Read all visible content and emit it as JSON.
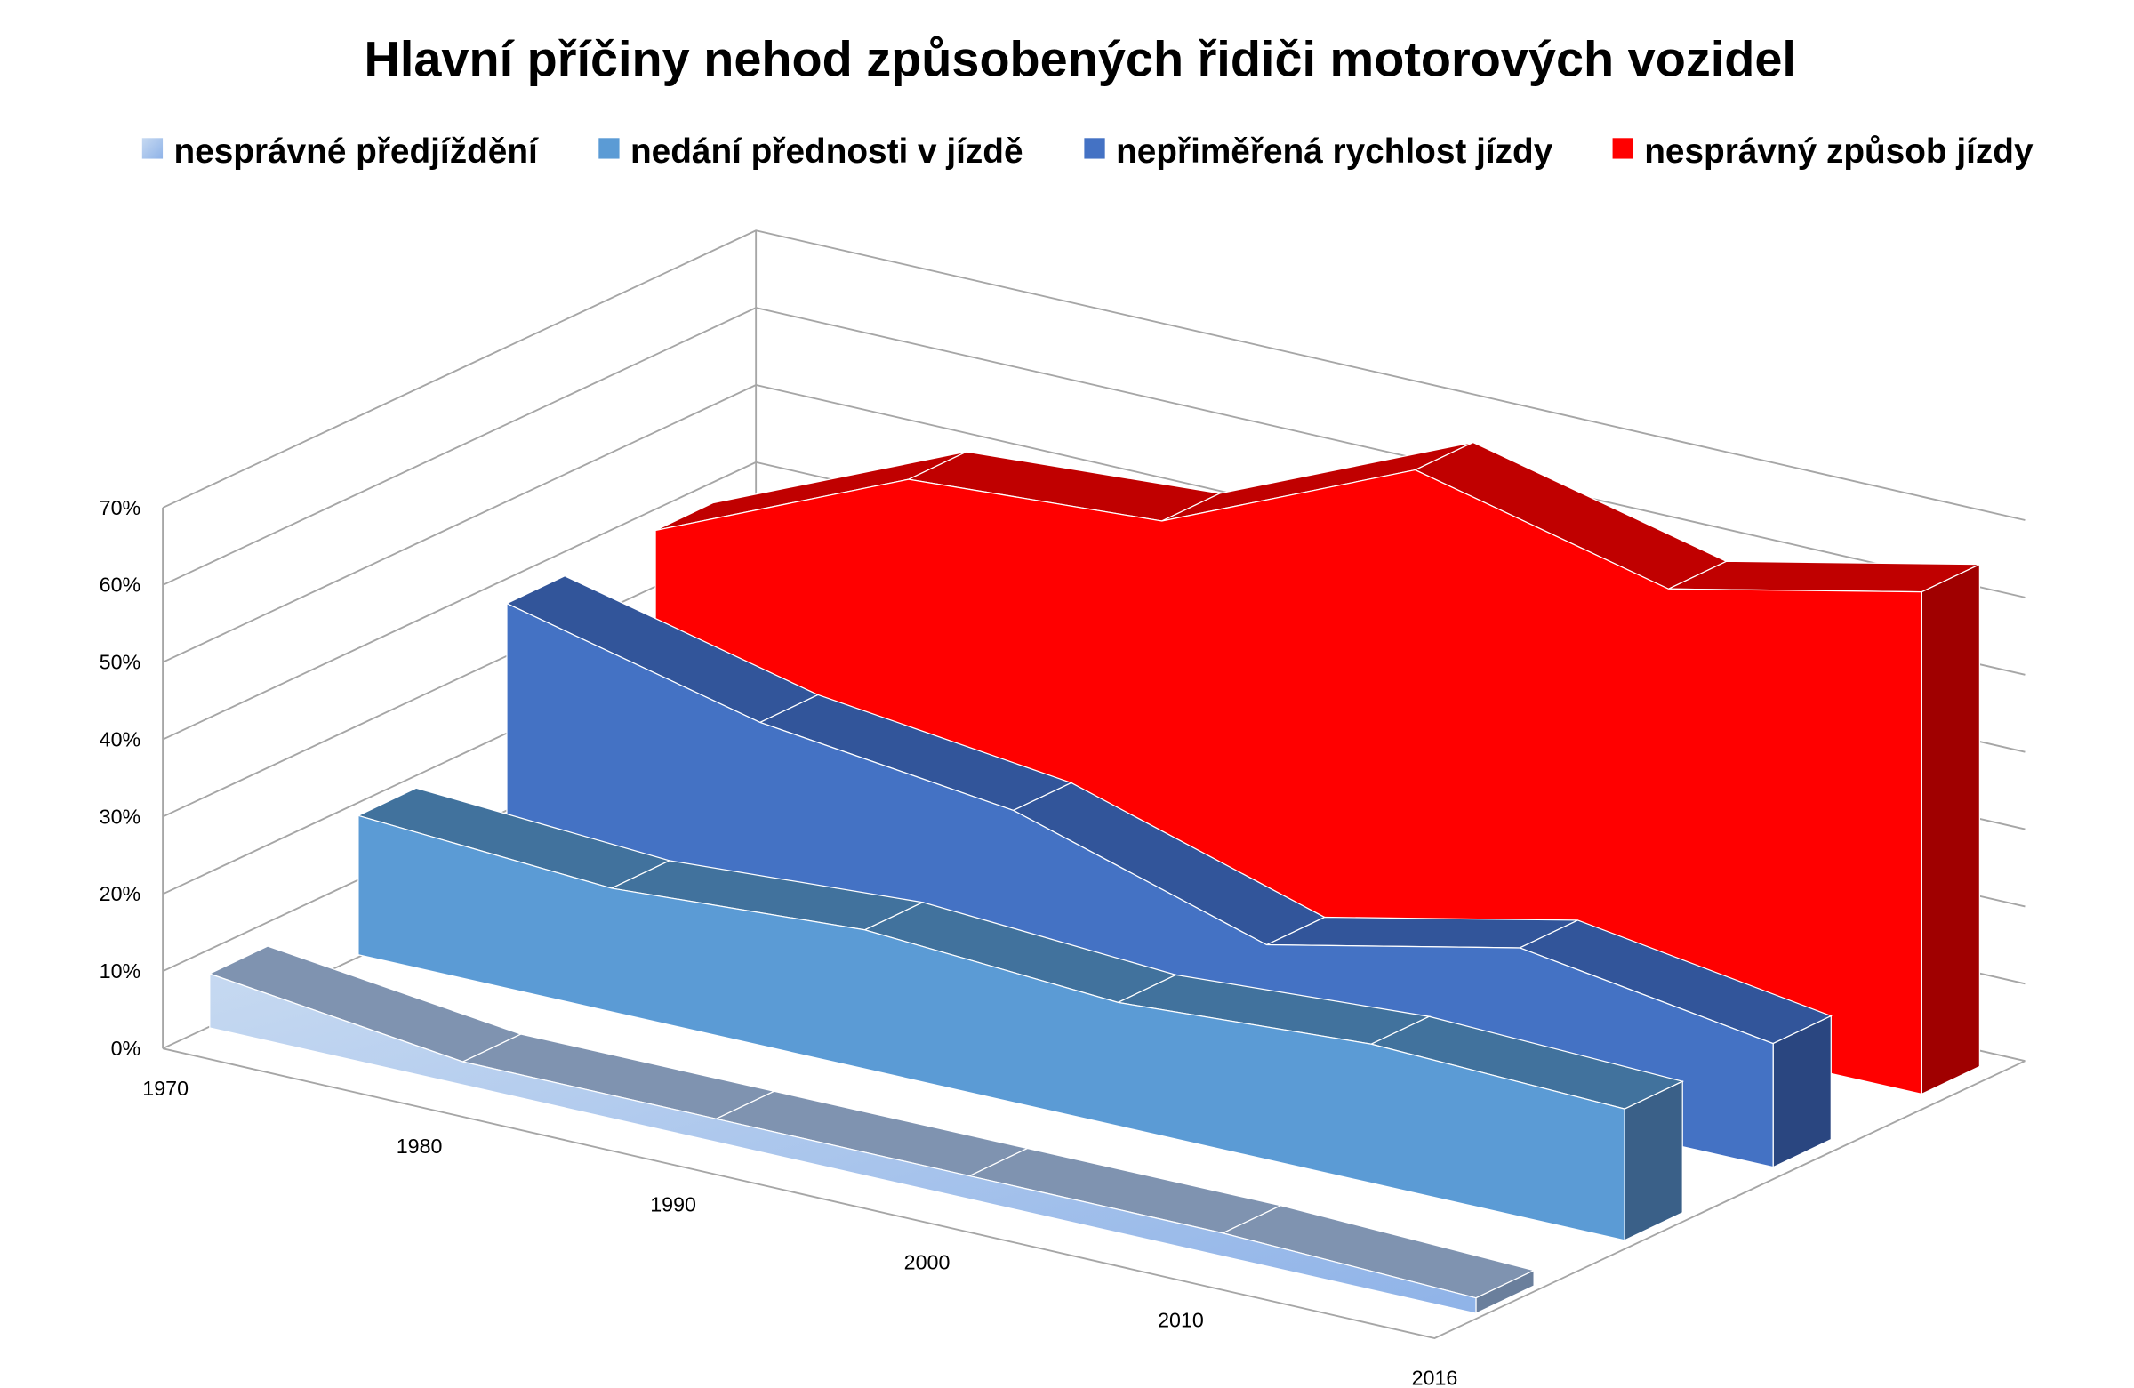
{
  "chart_data": {
    "type": "area",
    "variant": "3d",
    "title": "Hlavní příčiny nehod způsobených řidiči motorových vozidel",
    "categories": [
      "1970",
      "1980",
      "1990",
      "2000",
      "2010",
      "2016"
    ],
    "y_ticks": [
      "0%",
      "10%",
      "20%",
      "30%",
      "40%",
      "50%",
      "60%",
      "70%"
    ],
    "ylim": [
      0,
      70
    ],
    "y_unit": "%",
    "grid": true,
    "legend_position": "top",
    "series": [
      {
        "name": "nesprávné předjíždění",
        "values": [
          7,
          3,
          3,
          3,
          3,
          2
        ],
        "color": "#9dbde8",
        "top_color": "#7f93b0",
        "side_color": "#6a7f9c"
      },
      {
        "name": "nedání přednosti v jízdě",
        "values": [
          18,
          16,
          18,
          16,
          18,
          17
        ],
        "color": "#5b9bd5",
        "top_color": "#41729d",
        "side_color": "#3a6088"
      },
      {
        "name": "nepřiměřená rychlost jízdy",
        "values": [
          36,
          28,
          24,
          14,
          21,
          16
        ],
        "color": "#4472c4",
        "top_color": "#32559a",
        "side_color": "#2a4680"
      },
      {
        "name": "nesprávný způsob jízdy",
        "values": [
          36,
          50,
          52,
          66,
          58,
          65
        ],
        "color": "#ff0000",
        "top_color": "#c00000",
        "side_color": "#a00000"
      }
    ]
  }
}
